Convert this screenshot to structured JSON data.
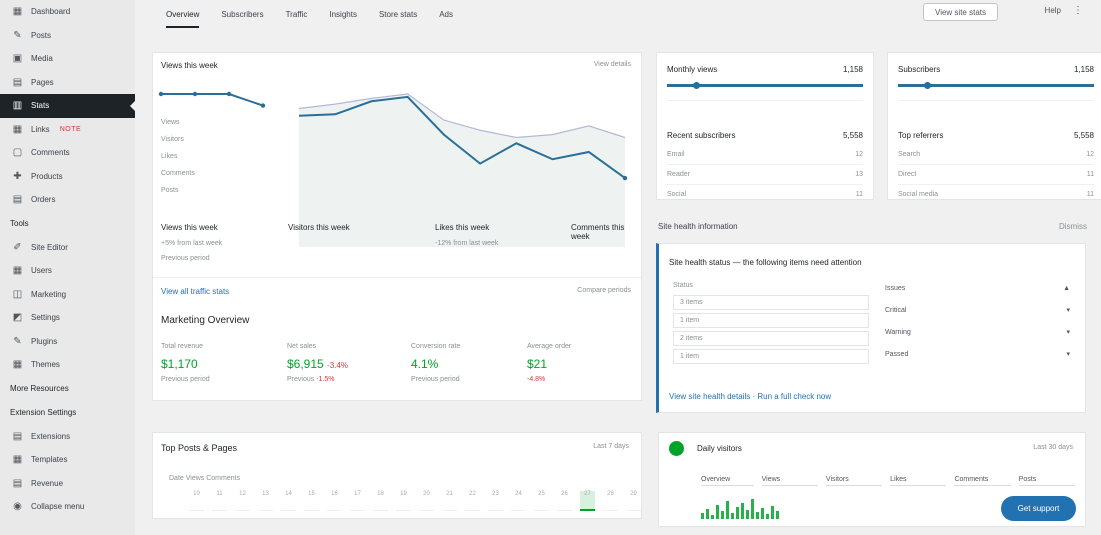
{
  "sidebar": {
    "items": [
      {
        "label": "Dashboard",
        "icon": "dashboard-icon"
      },
      {
        "label": "Posts",
        "icon": "pin-icon"
      },
      {
        "label": "Media",
        "icon": "media-icon"
      },
      {
        "label": "Pages",
        "icon": "page-icon"
      },
      {
        "label": "Stats",
        "icon": "chart-icon",
        "active": true
      },
      {
        "label": "Links",
        "icon": "link-icon",
        "badge": "NOTE"
      },
      {
        "label": "Comments",
        "icon": "comment-icon"
      },
      {
        "label": "Products",
        "icon": "product-icon"
      },
      {
        "label": "Orders",
        "icon": "orders-icon"
      }
    ],
    "heading_1": "Tools",
    "tools": [
      {
        "label": "Site Editor",
        "icon": "brush-icon"
      },
      {
        "label": "Users",
        "icon": "users-icon"
      },
      {
        "label": "Marketing",
        "icon": "megaphone-icon"
      },
      {
        "label": "Settings",
        "icon": "settings-icon"
      },
      {
        "label": "Plugins",
        "icon": "plugin-icon"
      },
      {
        "label": "Themes",
        "icon": "theme-icon"
      }
    ],
    "heading_2": "More Resources",
    "heading_3": "Extension Settings",
    "extras": [
      {
        "label": "Extensions",
        "icon": "extension-icon"
      },
      {
        "label": "Templates",
        "icon": "template-icon"
      },
      {
        "label": "Revenue",
        "icon": "revenue-icon"
      },
      {
        "label": "Collapse menu",
        "icon": "collapse-icon"
      }
    ]
  },
  "topbar": {
    "tabs": [
      "Overview",
      "Subscribers",
      "Traffic",
      "Insights",
      "Store stats",
      "Ads"
    ],
    "button": "View site stats",
    "user": "Help",
    "menu": "⋮"
  },
  "main_card": {
    "title": "Views this week",
    "toplink": "View details",
    "side_labels": [
      "Views",
      "Visitors",
      "Likes",
      "Comments",
      "Posts"
    ],
    "stats": [
      {
        "label": "Views this week",
        "sub": "+5% from last week",
        "sub2": "Previous period"
      },
      {
        "label": "Visitors this week",
        "sub": "",
        "sub2": ""
      },
      {
        "label": "Likes this week",
        "sub": "-12% from last week",
        "sub2": ""
      },
      {
        "label": "Comments this week",
        "sub": "",
        "sub2": ""
      }
    ],
    "link": "View all traffic stats",
    "link2": "Compare periods",
    "section_title": "Marketing Overview",
    "metrics": [
      {
        "label": "Total revenue",
        "value": "$1,170",
        "neg": "",
        "sub": "Previous period",
        "sub_neg": ""
      },
      {
        "label": "Net sales",
        "value": "$6,915",
        "neg": "-3.4%",
        "sub": "Previous",
        "sub_neg": "-1.5%"
      },
      {
        "label": "Conversion rate",
        "value": "4.1%",
        "neg": "",
        "sub": "Previous period",
        "sub_neg": ""
      },
      {
        "label": "Average order",
        "value": "$21",
        "neg": "",
        "sub": "",
        "sub_neg": "-4.8%"
      }
    ]
  },
  "chart_data": {
    "type": "line",
    "series": [
      {
        "values": [
          100,
          100,
          100,
          92
        ]
      },
      {
        "values": [
          85,
          86,
          95,
          98,
          72,
          52,
          66,
          55,
          60,
          42
        ]
      },
      {
        "values": [
          90,
          93,
          97,
          100,
          82,
          75,
          70,
          72,
          78,
          70
        ]
      }
    ],
    "ylim": [
      0,
      100
    ],
    "grid": false,
    "color": "#2a6f97"
  },
  "stat_cards": [
    {
      "title": "Monthly views",
      "value": "1,158",
      "sub_title": "Recent subscribers",
      "sub_value": "5,558",
      "rows": [
        {
          "k": "Email",
          "v": "12"
        },
        {
          "k": "Reader",
          "v": "13"
        },
        {
          "k": "Social",
          "v": "11"
        }
      ]
    },
    {
      "title": "Subscribers",
      "value": "1,158",
      "sub_title": "Top referrers",
      "sub_value": "5,558",
      "rows": [
        {
          "k": "Search",
          "v": "12"
        },
        {
          "k": "Direct",
          "v": "11"
        },
        {
          "k": "Social media",
          "v": "11"
        }
      ]
    }
  ],
  "panel": {
    "label": "Site health information",
    "link": "Dismiss",
    "title": "Site health status — the following items need attention",
    "input_label": "Status",
    "inputs": [
      "3 items",
      "1 item",
      "2 items",
      "1 item"
    ],
    "options": [
      "Issues",
      "Critical",
      "Warning",
      "Passed"
    ],
    "links": "View site health details  ·  Run a full check now"
  },
  "bottom_left": {
    "title": "Top Posts & Pages",
    "link": "Last 7 days",
    "heads": "Date                                                                          Views        Comments",
    "cells": [
      "10",
      "11",
      "12",
      "13",
      "14",
      "15",
      "16",
      "17",
      "18",
      "19",
      "20",
      "21",
      "22",
      "23",
      "24",
      "25",
      "26",
      "27",
      "28",
      "29"
    ]
  },
  "bottom_right": {
    "title": "Daily visitors",
    "menu": "Last 30 days",
    "heads": [
      "Overview",
      "Views",
      "Visitors",
      "Likes",
      "Comments",
      "Posts"
    ]
  },
  "fab": "Get support"
}
